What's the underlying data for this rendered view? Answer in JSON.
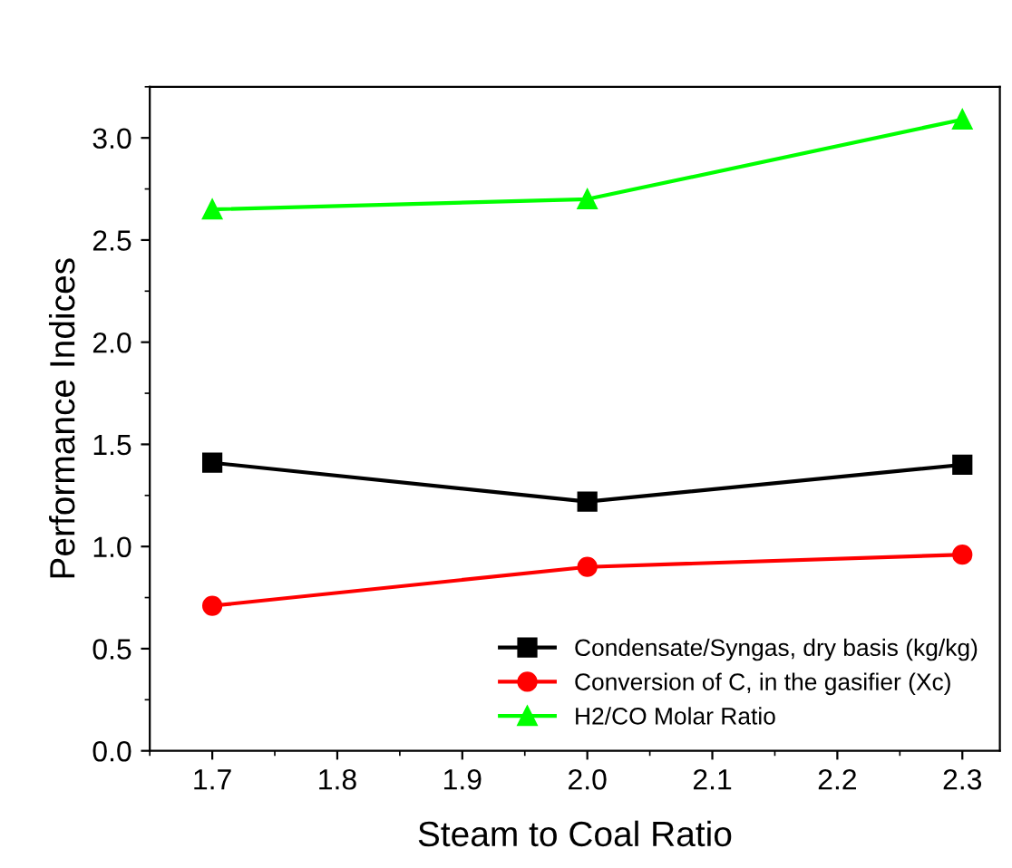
{
  "chart_data": {
    "type": "line",
    "xlabel": "Steam to Coal Ratio",
    "ylabel": "Performance Indices",
    "x": [
      1.7,
      2.0,
      2.3
    ],
    "series": [
      {
        "name": "Condensate/Syngas, dry basis (kg/kg)",
        "color": "#000000",
        "marker": "square",
        "values": [
          1.41,
          1.22,
          1.4
        ]
      },
      {
        "name": "Conversion of C, in the gasifier (Xc)",
        "color": "#ff0000",
        "marker": "circle",
        "values": [
          0.71,
          0.9,
          0.96
        ]
      },
      {
        "name": "H2/CO Molar Ratio",
        "color": "#00ff00",
        "marker": "triangle",
        "values": [
          2.65,
          2.7,
          3.09
        ]
      }
    ],
    "xlim": [
      1.65,
      2.33
    ],
    "xticks": [
      {
        "value": 1.7,
        "label": "1.7"
      },
      {
        "value": 1.8,
        "label": "1.8"
      },
      {
        "value": 1.9,
        "label": "1.9"
      },
      {
        "value": 2.0,
        "label": "2.0"
      },
      {
        "value": 2.1,
        "label": "2.1"
      },
      {
        "value": 2.2,
        "label": "2.2"
      },
      {
        "value": 2.3,
        "label": "2.3"
      }
    ],
    "ylim": [
      0,
      3.25
    ],
    "yticks": [
      {
        "value": 0,
        "label": "0.0"
      },
      {
        "value": 0.5,
        "label": "0.5"
      },
      {
        "value": 1.0,
        "label": "1.0"
      },
      {
        "value": 1.5,
        "label": "1.5"
      },
      {
        "value": 2.0,
        "label": "2.0"
      },
      {
        "value": 2.5,
        "label": "2.5"
      },
      {
        "value": 3.0,
        "label": "3.0"
      }
    ],
    "grid": false,
    "legend": "bottom right",
    "line_style": "solid"
  }
}
